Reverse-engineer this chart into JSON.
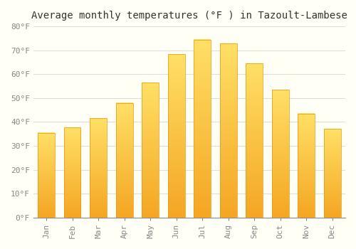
{
  "title": "Average monthly temperatures (°F ) in Tazoult-Lambese",
  "months": [
    "Jan",
    "Feb",
    "Mar",
    "Apr",
    "May",
    "Jun",
    "Jul",
    "Aug",
    "Sep",
    "Oct",
    "Nov",
    "Dec"
  ],
  "values": [
    35.5,
    37.8,
    41.5,
    48.0,
    56.5,
    68.5,
    74.5,
    72.8,
    64.5,
    53.5,
    43.5,
    37.0
  ],
  "bar_color_bottom": "#F5A623",
  "bar_color_top": "#FFD966",
  "bar_edge_color": "#E8960A",
  "ylim": [
    0,
    80
  ],
  "yticks": [
    0,
    10,
    20,
    30,
    40,
    50,
    60,
    70,
    80
  ],
  "ytick_labels": [
    "0°F",
    "10°F",
    "20°F",
    "30°F",
    "40°F",
    "50°F",
    "60°F",
    "70°F",
    "80°F"
  ],
  "background_color": "#FFFFF5",
  "grid_color": "#DDDDDD",
  "title_fontsize": 10,
  "tick_fontsize": 8,
  "bar_width": 0.65
}
